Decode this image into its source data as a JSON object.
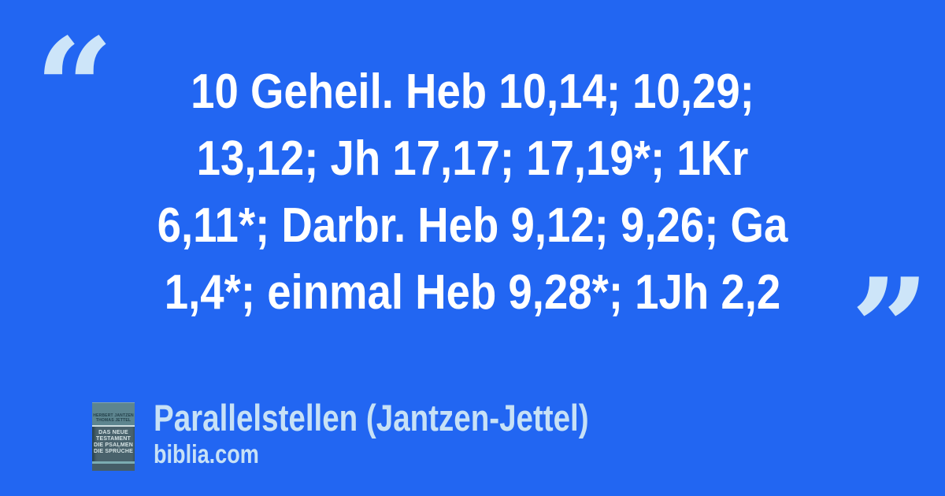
{
  "colors": {
    "background": "#2266f2",
    "quote_text": "#ffffff",
    "accent_light_blue": "#cde5f9",
    "footer_text": "#c7e1f6",
    "cover_teal_dark": "#49626c",
    "cover_teal_light": "#5d858f",
    "cover_stripe": "#7cacb1"
  },
  "quote": {
    "open_mark": "“",
    "close_mark": "”",
    "lines": [
      "10 Geheil. Heb 10,14; 10,29;",
      "13,12; Jh 17,17; 17,19*; 1Kr",
      "6,11*; Darbr. Heb 9,12; 9,26; Ga",
      "1,4*; einmal Heb 9,28*; 1Jh 2,2"
    ]
  },
  "source": {
    "title": "Parallelstellen (Jantzen-Jettel)",
    "website": "biblia.com",
    "book_cover": {
      "authors": [
        "HERBERT JANTZEN",
        "THOMAS JETTEL"
      ],
      "title_lines": [
        "DAS NEUE",
        "TESTAMENT",
        "DIE PSALMEN",
        "DIE SPRÜCHE"
      ]
    }
  }
}
